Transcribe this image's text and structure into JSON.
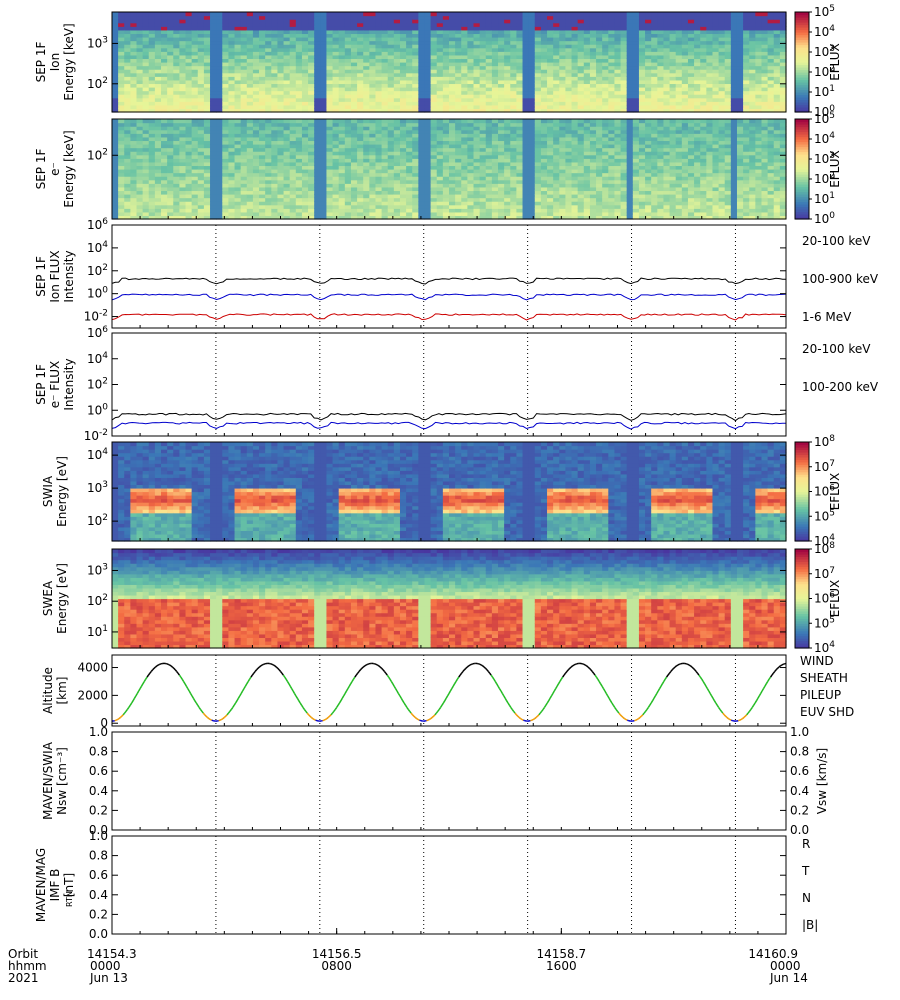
{
  "chart_data": {
    "type": "multi-panel time series",
    "time_axis": {
      "row_labels": [
        "Orbit",
        "hhmm",
        "2021"
      ],
      "ticks": [
        {
          "orbit": "14154.3",
          "hhmm": "0000",
          "date": "Jun 13"
        },
        {
          "orbit": "14156.5",
          "hhmm": "0800",
          "date": ""
        },
        {
          "orbit": "14158.7",
          "hhmm": "1600",
          "date": ""
        },
        {
          "orbit": "14160.9",
          "hhmm": "0000",
          "date": "Jun 14"
        }
      ],
      "periapsis_markers_hours": [
        3.7,
        7.4,
        11.1,
        14.8,
        18.5,
        22.2
      ]
    },
    "panels": [
      {
        "id": "sep-ion-spectrogram",
        "type": "heatmap",
        "ylabel": [
          "SEP 1F",
          "Ion",
          "Energy [keV]"
        ],
        "yscale": "log",
        "ylim": [
          20,
          6000
        ],
        "yticks": [
          {
            "v": 100,
            "t": "10",
            "e": "2"
          },
          {
            "v": 1000,
            "t": "10",
            "e": "3"
          }
        ],
        "colorbar": {
          "label": "EFLUX",
          "ticks": [
            {
              "t": "10",
              "e": "0"
            },
            {
              "t": "10",
              "e": "1"
            },
            {
              "t": "10",
              "e": "2"
            },
            {
              "t": "10",
              "e": "3"
            },
            {
              "t": "10",
              "e": "4"
            },
            {
              "t": "10",
              "e": "5"
            }
          ]
        }
      },
      {
        "id": "sep-electron-spectrogram",
        "type": "heatmap",
        "ylabel": [
          "SEP 1F",
          "e⁻",
          "Energy [keV]"
        ],
        "yscale": "log",
        "ylim": [
          20,
          250
        ],
        "yticks": [
          {
            "v": 100,
            "t": "10",
            "e": "2"
          }
        ],
        "colorbar": {
          "label": "EFLUX",
          "ticks": [
            {
              "t": "10",
              "e": "0"
            },
            {
              "t": "10",
              "e": "1"
            },
            {
              "t": "10",
              "e": "2"
            },
            {
              "t": "10",
              "e": "3"
            },
            {
              "t": "10",
              "e": "4"
            },
            {
              "t": "10",
              "e": "5"
            }
          ]
        }
      },
      {
        "id": "sep-ion-flux",
        "type": "line",
        "ylabel": [
          "SEP 1F",
          "Ion FLUX",
          "Intensity"
        ],
        "yscale": "log",
        "ylim": [
          0.001,
          1000000
        ],
        "yticks": [
          {
            "t": "10",
            "e": "-2"
          },
          {
            "t": "10",
            "e": "0"
          },
          {
            "t": "10",
            "e": "2"
          },
          {
            "t": "10",
            "e": "4"
          },
          {
            "t": "10",
            "e": "6"
          }
        ],
        "series": [
          {
            "name": "20-100 keV",
            "color": "#000000",
            "level": 20
          },
          {
            "name": "100-900 keV",
            "color": "#0000cc",
            "level": 0.8
          },
          {
            "name": "1-6 MeV",
            "color": "#cc0000",
            "level": 0.015
          }
        ]
      },
      {
        "id": "sep-electron-flux",
        "type": "line",
        "ylabel": [
          "SEP 1F",
          "e⁻ FLUX",
          "Intensity"
        ],
        "yscale": "log",
        "ylim": [
          0.01,
          1000000
        ],
        "yticks": [
          {
            "t": "10",
            "e": "-2"
          },
          {
            "t": "10",
            "e": "0"
          },
          {
            "t": "10",
            "e": "2"
          },
          {
            "t": "10",
            "e": "4"
          },
          {
            "t": "10",
            "e": "6"
          }
        ],
        "series": [
          {
            "name": "20-100 keV",
            "color": "#000000",
            "level": 0.5
          },
          {
            "name": "100-200 keV",
            "color": "#0000cc",
            "level": 0.1
          }
        ]
      },
      {
        "id": "swia-spectrogram",
        "type": "heatmap",
        "ylabel": [
          "SWIA",
          "Energy [eV]"
        ],
        "yscale": "log",
        "ylim": [
          25,
          25000
        ],
        "yticks": [
          {
            "t": "10",
            "e": "2"
          },
          {
            "t": "10",
            "e": "3"
          },
          {
            "t": "10",
            "e": "4"
          }
        ],
        "colorbar": {
          "label": "EFLUX",
          "ticks": [
            {
              "t": "10",
              "e": "4"
            },
            {
              "t": "10",
              "e": "5"
            },
            {
              "t": "10",
              "e": "6"
            },
            {
              "t": "10",
              "e": "7"
            },
            {
              "t": "10",
              "e": "8"
            }
          ]
        }
      },
      {
        "id": "swea-spectrogram",
        "type": "heatmap",
        "ylabel": [
          "SWEA",
          "Energy [eV]"
        ],
        "yscale": "log",
        "ylim": [
          3,
          5000
        ],
        "yticks": [
          {
            "t": "10",
            "e": "1"
          },
          {
            "t": "10",
            "e": "2"
          },
          {
            "t": "10",
            "e": "3"
          }
        ],
        "colorbar": {
          "label": "EFLUX",
          "ticks": [
            {
              "t": "10",
              "e": "4"
            },
            {
              "t": "10",
              "e": "5"
            },
            {
              "t": "10",
              "e": "6"
            },
            {
              "t": "10",
              "e": "7"
            },
            {
              "t": "10",
              "e": "8"
            }
          ]
        }
      },
      {
        "id": "altitude",
        "type": "line",
        "ylabel": [
          "Altitude",
          "[km]"
        ],
        "ylim": [
          -200,
          4900
        ],
        "yticks": [
          "0",
          "2000",
          "4000"
        ],
        "legend": [
          {
            "name": "WIND",
            "color": "#000000"
          },
          {
            "name": "SHEATH",
            "color": "#22bb22"
          },
          {
            "name": "PILEUP",
            "color": "#ee9900"
          },
          {
            "name": "EUV SHD",
            "color": "#0000cc"
          }
        ]
      },
      {
        "id": "swia-moments",
        "type": "line",
        "ylabel": [
          "MAVEN/SWIA",
          "Nsw [cm⁻³]"
        ],
        "ylabel_right": "Vsw [km/s]",
        "ylim": [
          0,
          1
        ],
        "yticks": [
          "0.0",
          "0.2",
          "0.4",
          "0.6",
          "0.8",
          "1.0"
        ]
      },
      {
        "id": "mag-imf",
        "type": "line",
        "ylabel": [
          "MAVEN/MAG",
          "IMF B",
          "[nT]"
        ],
        "ylabel_sub": "RTN",
        "ylim": [
          0,
          1
        ],
        "yticks": [
          "0.0",
          "0.2",
          "0.4",
          "0.6",
          "0.8",
          "1.0"
        ],
        "legend": [
          {
            "name": "R",
            "color": "#0000cc"
          },
          {
            "name": "T",
            "color": "#22bb22"
          },
          {
            "name": "N",
            "color": "#cc0000"
          },
          {
            "name": "|B|",
            "color": "#000000"
          }
        ]
      }
    ]
  }
}
